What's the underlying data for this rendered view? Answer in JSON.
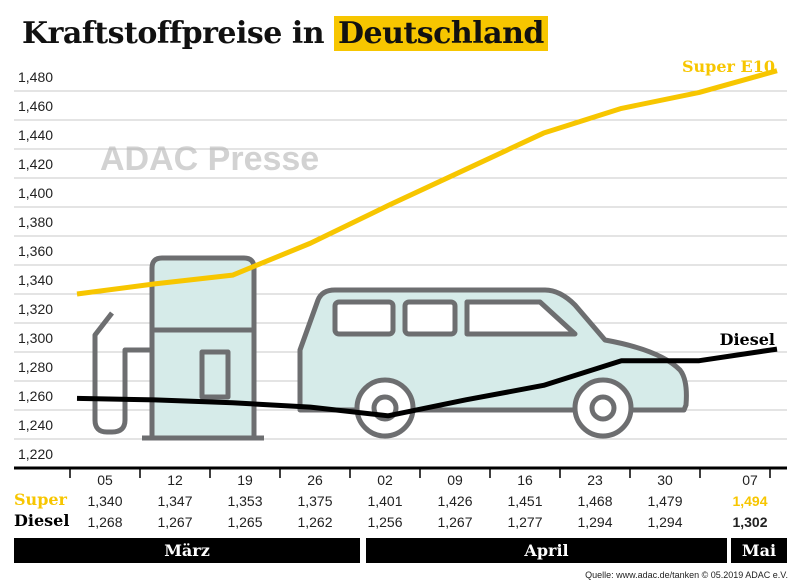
{
  "title": {
    "part1": "Kraftstoffpreise in ",
    "part2": "Deutschland"
  },
  "chart_data": {
    "type": "line",
    "title": "Kraftstoffpreise in Deutschland",
    "categories": [
      "05",
      "12",
      "19",
      "26",
      "02",
      "09",
      "16",
      "23",
      "30",
      "07"
    ],
    "months": [
      "März",
      "April",
      "Mai"
    ],
    "yticks": [
      "1,220",
      "1,240",
      "1,260",
      "1,280",
      "1,300",
      "1,320",
      "1,340",
      "1,360",
      "1,380",
      "1,400",
      "1,420",
      "1,440",
      "1,460",
      "1,480"
    ],
    "ylim": [
      1.22,
      1.48
    ],
    "grid": true,
    "series": [
      {
        "name": "Super E10",
        "row_label": "Super",
        "color": "#f7c600",
        "values": [
          1.34,
          1.347,
          1.353,
          1.375,
          1.401,
          1.426,
          1.451,
          1.468,
          1.479,
          1.494
        ],
        "labels": [
          "1,340",
          "1,347",
          "1,353",
          "1,375",
          "1,401",
          "1,426",
          "1,451",
          "1,468",
          "1,479",
          "1,494"
        ]
      },
      {
        "name": "Diesel",
        "row_label": "Diesel",
        "color": "#000000",
        "values": [
          1.268,
          1.267,
          1.265,
          1.262,
          1.256,
          1.267,
          1.277,
          1.294,
          1.294,
          1.302
        ],
        "labels": [
          "1,268",
          "1,267",
          "1,265",
          "1,262",
          "1,256",
          "1,267",
          "1,277",
          "1,294",
          "1,294",
          "1,302"
        ]
      }
    ]
  },
  "watermark": "ADAC Presse",
  "source": "Quelle: www.adac.de/tanken   © 05.2019  ADAC e.V."
}
